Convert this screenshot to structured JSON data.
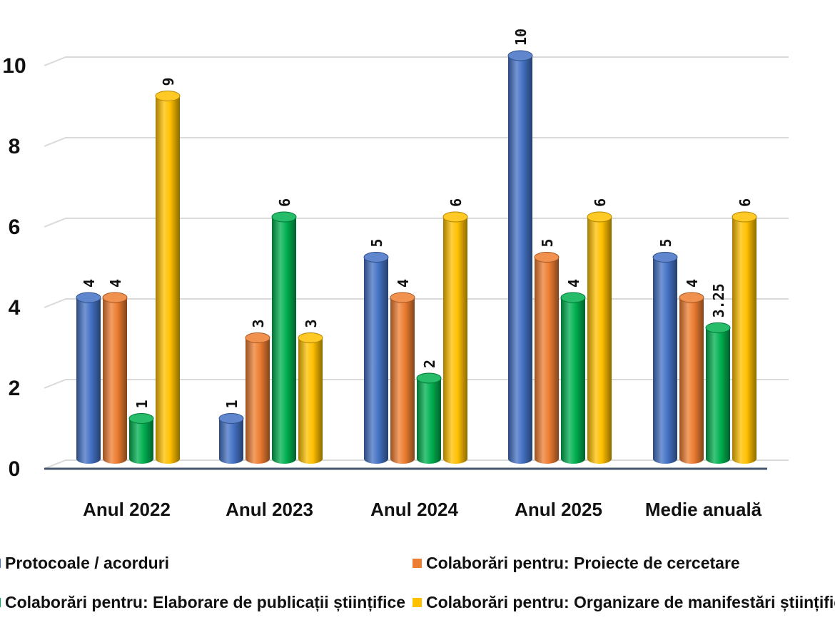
{
  "chart_data": {
    "type": "bar",
    "categories": [
      "Anul 2022",
      "Anul 2023",
      "Anul 2024",
      "Anul 2025",
      "Medie anuală"
    ],
    "series": [
      {
        "name": "Protocoale / acorduri",
        "values": [
          4,
          1,
          5,
          10,
          5
        ],
        "labels": [
          "4",
          "1",
          "5",
          "10",
          "5"
        ],
        "color": "#4472C4"
      },
      {
        "name": "Colaborări pentru: Proiecte de cercetare",
        "values": [
          4,
          3,
          4,
          5,
          4
        ],
        "labels": [
          "4",
          "3",
          "4",
          "5",
          "4"
        ],
        "color": "#ED7D31"
      },
      {
        "name": "Colaborări pentru: Elaborare de publicații științifice",
        "values": [
          1,
          6,
          2,
          4,
          3.25
        ],
        "labels": [
          "1",
          "6",
          "2",
          "4",
          "3.25"
        ],
        "color": "#00B050"
      },
      {
        "name": "Colaborări pentru: Organizare de manifestări științifice",
        "values": [
          9,
          3,
          6,
          6,
          6
        ],
        "labels": [
          "9",
          "3",
          "6",
          "6",
          "6"
        ],
        "color": "#FFC000"
      }
    ],
    "yticks": [
      "0",
      "2",
      "4",
      "6",
      "8",
      "10"
    ],
    "ylim": [
      0,
      10
    ],
    "grid": true,
    "legend_position": "bottom"
  }
}
